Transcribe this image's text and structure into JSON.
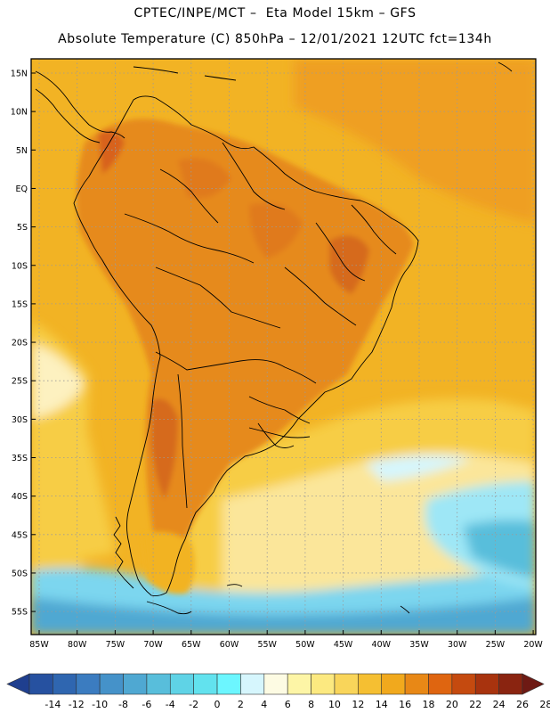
{
  "header": {
    "line1": "CPTEC/INPE/MCT –  Eta Model 15km – GFS",
    "line2": "Absolute Temperature (C) 850hPa – 12/01/2021 12UTC fct=134h"
  },
  "axes": {
    "lat_labels": [
      "15N",
      "10N",
      "5N",
      "EQ",
      "5S",
      "10S",
      "15S",
      "20S",
      "25S",
      "30S",
      "35S",
      "40S",
      "45S",
      "50S",
      "55S"
    ],
    "lon_labels": [
      "85W",
      "80W",
      "75W",
      "70W",
      "65W",
      "60W",
      "55W",
      "50W",
      "45W",
      "40W",
      "35W",
      "30W",
      "25W",
      "20W"
    ]
  },
  "colorbar": {
    "labels": [
      "-14",
      "-12",
      "-10",
      "-8",
      "-6",
      "-4",
      "-2",
      "0",
      "2",
      "4",
      "6",
      "8",
      "10",
      "12",
      "14",
      "16",
      "18",
      "20",
      "22",
      "24",
      "26",
      "28"
    ],
    "colors": [
      "#1f3f8f",
      "#2651a0",
      "#2f66b0",
      "#3b7cc0",
      "#4592c9",
      "#4fa8d2",
      "#58bedb",
      "#5fd3e6",
      "#62e2ee",
      "#6cf6ff",
      "#d6f6fd",
      "#fdfbe3",
      "#fdf5a6",
      "#fce980",
      "#f9d55a",
      "#f5bf32",
      "#f1a91d",
      "#e88816",
      "#df6510",
      "#c54a0f",
      "#a8330e",
      "#8a2410",
      "#6e1a14"
    ]
  },
  "palette": {
    "ocean_warm": "#f2b324",
    "ocean_mid": "#f7cd45",
    "ocean_cool": "#fbe69a",
    "land_hot": "#e6891b",
    "land_very_hot": "#dc6c18",
    "cold_band": "#7bd6ef"
  }
}
